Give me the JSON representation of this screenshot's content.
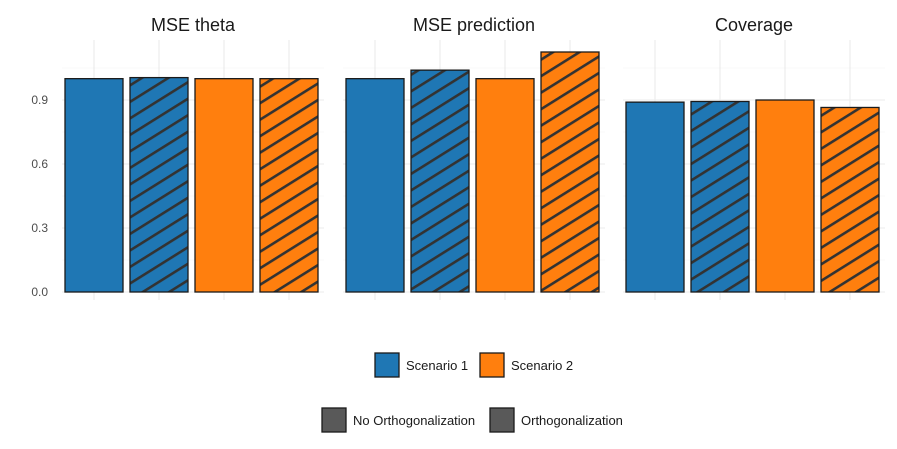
{
  "chart_data": {
    "type": "bar",
    "facets": [
      "MSE theta",
      "MSE prediction",
      "Coverage"
    ],
    "categories": [
      "Scenario 1 / No Orthogonalization",
      "Scenario 1 / Orthogonalization",
      "Scenario 2 / No Orthogonalization",
      "Scenario 2 / Orthogonalization"
    ],
    "panels": [
      {
        "title": "MSE theta",
        "values": [
          1.0,
          1.005,
          1.0,
          1.0
        ]
      },
      {
        "title": "MSE prediction",
        "values": [
          1.0,
          1.04,
          1.0,
          1.125
        ]
      },
      {
        "title": "Coverage",
        "values": [
          0.89,
          0.893,
          0.9,
          0.865
        ]
      }
    ],
    "y_ticks": [
      "0.0",
      "0.3",
      "0.6",
      "0.9"
    ],
    "y_tick_values": [
      0,
      0.3,
      0.6,
      0.9
    ],
    "ylim": [
      0,
      1.125
    ],
    "grid": true,
    "legend_position": "bottom",
    "fill_legend": {
      "items": [
        {
          "label": "Scenario 1",
          "color": "#1f77b4"
        },
        {
          "label": "Scenario 2",
          "color": "#ff7f0e"
        }
      ]
    },
    "pattern_legend": {
      "items": [
        {
          "label": "No Orthogonalization",
          "pattern": "none"
        },
        {
          "label": "Orthogonalization",
          "pattern": "stripe"
        }
      ]
    },
    "bar_fill_index": [
      0,
      0,
      1,
      1
    ],
    "bar_pattern_index": [
      0,
      1,
      0,
      1
    ],
    "pattern_legend_swatch_color": "#595959",
    "stripe_color": "#333333"
  }
}
